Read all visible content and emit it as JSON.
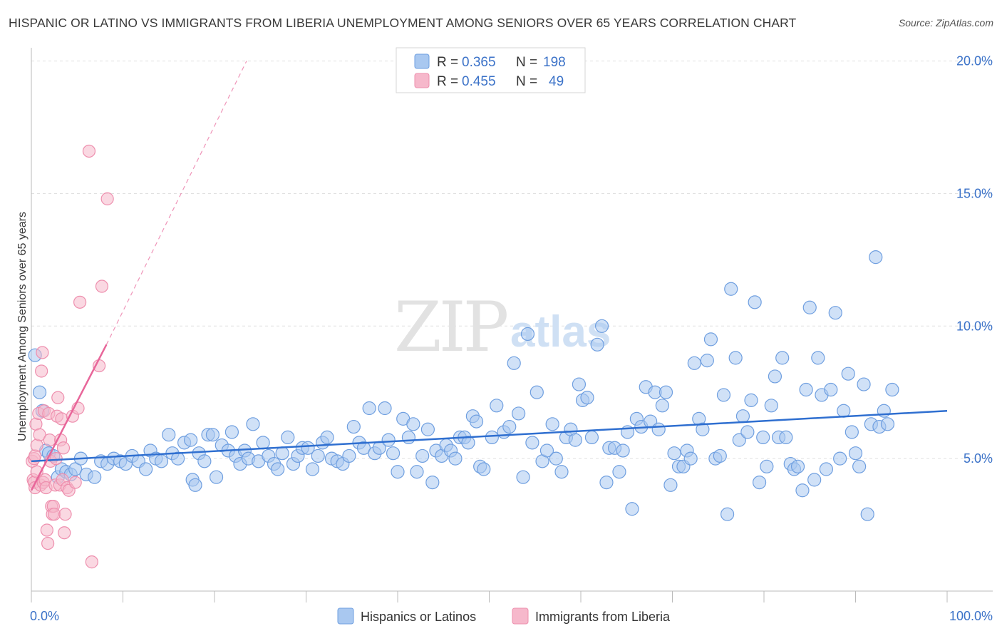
{
  "title": "HISPANIC OR LATINO VS IMMIGRANTS FROM LIBERIA UNEMPLOYMENT AMONG SENIORS OVER 65 YEARS CORRELATION CHART",
  "source": "Source: ZipAtlas.com",
  "watermark": {
    "zip": "ZIP",
    "atlas": "atlas"
  },
  "legend": {
    "rows": [
      {
        "r_label": "R =",
        "r_value": "0.365",
        "n_label": "N =",
        "n_value": "198",
        "color": "#a9c8f0"
      },
      {
        "r_label": "R =",
        "r_value": "0.455",
        "n_label": "N =",
        "n_value": "49",
        "color": "#f6b8cb"
      }
    ]
  },
  "bottom_legend": [
    {
      "label": "Hispanics or Latinos",
      "color": "#a9c8f0"
    },
    {
      "label": "Immigrants from Liberia",
      "color": "#f6b8cb"
    }
  ],
  "colors": {
    "blue_fill": "#a9c8f0",
    "blue_stroke": "#6f9fe0",
    "blue_line": "#2f6fd0",
    "pink_fill": "#f6b8cb",
    "pink_stroke": "#ee8fae",
    "pink_line": "#e8669a",
    "grid": "#e0e0e0",
    "axis_label": "#3b72c8"
  },
  "chart_data": {
    "type": "scatter",
    "title": "HISPANIC OR LATINO VS IMMIGRANTS FROM LIBERIA UNEMPLOYMENT AMONG SENIORS OVER 65 YEARS CORRELATION CHART",
    "xlabel": "",
    "ylabel": "Unemployment Among Seniors over 65 years",
    "xlim": [
      0,
      100
    ],
    "ylim": [
      0,
      20.5
    ],
    "y_ticks": [
      5,
      10,
      15,
      20
    ],
    "y_tick_labels": [
      "5.0%",
      "10.0%",
      "15.0%",
      "20.0%"
    ],
    "x_tick_labels": [
      "0.0%",
      "100.0%"
    ],
    "grid": true,
    "series": [
      {
        "name": "Hispanics or Latinos",
        "r": 0.365,
        "n": 198,
        "trend": {
          "x": [
            0,
            100
          ],
          "y": [
            4.9,
            6.8
          ],
          "style": "solid"
        },
        "points": [
          [
            0.4,
            8.9
          ],
          [
            0.9,
            7.5
          ],
          [
            1.2,
            6.8
          ],
          [
            1.6,
            5.3
          ],
          [
            1.9,
            5.2
          ],
          [
            2.4,
            5.1
          ],
          [
            2.9,
            4.3
          ],
          [
            3.3,
            4.6
          ],
          [
            3.8,
            4.5
          ],
          [
            4.3,
            4.4
          ],
          [
            4.8,
            4.6
          ],
          [
            5.4,
            5.0
          ],
          [
            6.0,
            4.4
          ],
          [
            6.9,
            4.3
          ],
          [
            7.6,
            4.9
          ],
          [
            8.3,
            4.8
          ],
          [
            9.0,
            5.0
          ],
          [
            9.7,
            4.9
          ],
          [
            10.3,
            4.8
          ],
          [
            11.0,
            5.1
          ],
          [
            11.7,
            4.9
          ],
          [
            12.5,
            4.6
          ],
          [
            13.0,
            5.3
          ],
          [
            13.6,
            5.0
          ],
          [
            14.2,
            4.9
          ],
          [
            15.0,
            5.9
          ],
          [
            15.4,
            5.2
          ],
          [
            16.0,
            5.0
          ],
          [
            16.7,
            5.6
          ],
          [
            17.4,
            5.7
          ],
          [
            17.6,
            4.2
          ],
          [
            17.9,
            4.0
          ],
          [
            18.3,
            5.2
          ],
          [
            18.9,
            4.9
          ],
          [
            19.3,
            5.9
          ],
          [
            19.8,
            5.9
          ],
          [
            20.2,
            4.3
          ],
          [
            20.8,
            5.5
          ],
          [
            21.5,
            5.3
          ],
          [
            21.9,
            6.0
          ],
          [
            22.3,
            5.1
          ],
          [
            22.8,
            4.8
          ],
          [
            23.3,
            5.3
          ],
          [
            23.7,
            5.0
          ],
          [
            24.2,
            6.3
          ],
          [
            24.8,
            4.9
          ],
          [
            25.3,
            5.6
          ],
          [
            25.9,
            5.1
          ],
          [
            26.5,
            4.8
          ],
          [
            26.9,
            4.6
          ],
          [
            27.4,
            5.2
          ],
          [
            28.0,
            5.8
          ],
          [
            28.6,
            4.8
          ],
          [
            29.1,
            5.1
          ],
          [
            29.6,
            5.4
          ],
          [
            30.2,
            5.4
          ],
          [
            30.7,
            4.6
          ],
          [
            31.3,
            5.1
          ],
          [
            31.8,
            5.6
          ],
          [
            32.3,
            5.8
          ],
          [
            32.8,
            5.0
          ],
          [
            33.4,
            4.9
          ],
          [
            34.0,
            4.8
          ],
          [
            34.7,
            5.1
          ],
          [
            35.2,
            6.2
          ],
          [
            35.8,
            5.6
          ],
          [
            36.3,
            5.4
          ],
          [
            36.9,
            6.9
          ],
          [
            37.5,
            5.2
          ],
          [
            38.0,
            5.4
          ],
          [
            38.6,
            6.9
          ],
          [
            39.0,
            5.7
          ],
          [
            39.5,
            5.2
          ],
          [
            40.0,
            4.5
          ],
          [
            40.6,
            6.5
          ],
          [
            41.2,
            5.8
          ],
          [
            41.7,
            6.3
          ],
          [
            42.1,
            4.5
          ],
          [
            42.7,
            5.1
          ],
          [
            43.3,
            6.1
          ],
          [
            43.8,
            4.1
          ],
          [
            44.2,
            5.3
          ],
          [
            44.8,
            5.1
          ],
          [
            45.3,
            5.5
          ],
          [
            45.8,
            5.3
          ],
          [
            46.3,
            5.0
          ],
          [
            46.8,
            5.8
          ],
          [
            47.3,
            5.8
          ],
          [
            47.7,
            5.6
          ],
          [
            48.2,
            6.6
          ],
          [
            48.6,
            6.4
          ],
          [
            49.0,
            4.7
          ],
          [
            49.4,
            4.6
          ],
          [
            50.3,
            5.8
          ],
          [
            50.8,
            7.0
          ],
          [
            51.6,
            6.0
          ],
          [
            52.2,
            6.2
          ],
          [
            52.7,
            8.6
          ],
          [
            53.2,
            6.7
          ],
          [
            53.7,
            4.3
          ],
          [
            54.2,
            9.7
          ],
          [
            54.7,
            5.6
          ],
          [
            55.2,
            7.5
          ],
          [
            55.8,
            4.9
          ],
          [
            56.3,
            5.3
          ],
          [
            56.9,
            6.3
          ],
          [
            57.3,
            5.0
          ],
          [
            57.9,
            4.5
          ],
          [
            58.4,
            5.8
          ],
          [
            58.9,
            6.1
          ],
          [
            59.4,
            5.7
          ],
          [
            59.8,
            7.8
          ],
          [
            60.2,
            7.2
          ],
          [
            60.7,
            7.3
          ],
          [
            61.2,
            5.8
          ],
          [
            61.8,
            9.3
          ],
          [
            62.3,
            10.0
          ],
          [
            62.8,
            4.1
          ],
          [
            63.1,
            5.4
          ],
          [
            63.7,
            5.4
          ],
          [
            64.2,
            4.5
          ],
          [
            64.6,
            5.3
          ],
          [
            65.1,
            6.0
          ],
          [
            65.6,
            3.1
          ],
          [
            66.1,
            6.5
          ],
          [
            66.6,
            6.2
          ],
          [
            67.1,
            7.7
          ],
          [
            67.6,
            6.4
          ],
          [
            68.1,
            7.5
          ],
          [
            68.5,
            6.1
          ],
          [
            68.9,
            7.0
          ],
          [
            69.3,
            7.5
          ],
          [
            69.8,
            4.0
          ],
          [
            70.2,
            5.2
          ],
          [
            70.7,
            4.7
          ],
          [
            71.2,
            4.7
          ],
          [
            71.6,
            5.3
          ],
          [
            72.0,
            5.0
          ],
          [
            72.4,
            8.6
          ],
          [
            72.9,
            6.5
          ],
          [
            73.3,
            6.1
          ],
          [
            73.8,
            8.7
          ],
          [
            74.2,
            9.5
          ],
          [
            74.7,
            5.0
          ],
          [
            75.2,
            5.1
          ],
          [
            75.6,
            7.4
          ],
          [
            76.0,
            2.9
          ],
          [
            76.4,
            11.4
          ],
          [
            76.9,
            8.8
          ],
          [
            77.3,
            5.7
          ],
          [
            77.7,
            6.6
          ],
          [
            78.2,
            6.0
          ],
          [
            78.6,
            7.2
          ],
          [
            79.0,
            10.9
          ],
          [
            79.5,
            4.1
          ],
          [
            79.9,
            5.8
          ],
          [
            80.3,
            4.7
          ],
          [
            80.8,
            7.0
          ],
          [
            81.2,
            8.1
          ],
          [
            81.6,
            5.8
          ],
          [
            82.0,
            8.8
          ],
          [
            82.4,
            5.8
          ],
          [
            82.9,
            4.8
          ],
          [
            83.3,
            4.6
          ],
          [
            83.7,
            4.7
          ],
          [
            84.2,
            3.8
          ],
          [
            84.6,
            7.6
          ],
          [
            85.0,
            10.7
          ],
          [
            85.5,
            4.2
          ],
          [
            85.9,
            8.8
          ],
          [
            86.3,
            7.4
          ],
          [
            86.8,
            4.6
          ],
          [
            87.3,
            7.6
          ],
          [
            87.8,
            10.5
          ],
          [
            88.3,
            5.0
          ],
          [
            88.7,
            6.8
          ],
          [
            89.2,
            8.2
          ],
          [
            89.6,
            6.0
          ],
          [
            90.0,
            5.2
          ],
          [
            90.4,
            4.7
          ],
          [
            90.9,
            7.8
          ],
          [
            91.3,
            2.9
          ],
          [
            91.7,
            6.3
          ],
          [
            92.2,
            12.6
          ],
          [
            92.6,
            6.2
          ],
          [
            93.1,
            6.8
          ],
          [
            93.5,
            6.3
          ],
          [
            94.0,
            7.6
          ]
        ]
      },
      {
        "name": "Immigrants from Liberia",
        "r": 0.455,
        "n": 49,
        "trend": {
          "x": [
            0,
            8.2
          ],
          "y": [
            3.8,
            9.3
          ],
          "style": "solid",
          "extension": {
            "x": [
              8.2,
              23.5
            ],
            "y": [
              9.3,
              20.0
            ],
            "style": "dashed"
          }
        },
        "points": [
          [
            0.1,
            4.9
          ],
          [
            0.2,
            4.2
          ],
          [
            0.3,
            5.0
          ],
          [
            0.3,
            4.1
          ],
          [
            0.4,
            3.9
          ],
          [
            0.4,
            5.1
          ],
          [
            0.5,
            6.3
          ],
          [
            0.6,
            5.5
          ],
          [
            0.6,
            4.5
          ],
          [
            0.8,
            6.7
          ],
          [
            0.9,
            5.9
          ],
          [
            1.0,
            4.0
          ],
          [
            1.1,
            8.3
          ],
          [
            1.2,
            9.0
          ],
          [
            1.3,
            4.1
          ],
          [
            1.4,
            6.8
          ],
          [
            1.5,
            4.2
          ],
          [
            1.6,
            3.9
          ],
          [
            1.7,
            2.3
          ],
          [
            1.8,
            1.8
          ],
          [
            1.9,
            6.7
          ],
          [
            2.0,
            5.7
          ],
          [
            2.1,
            4.9
          ],
          [
            2.2,
            3.2
          ],
          [
            2.3,
            2.9
          ],
          [
            2.4,
            3.2
          ],
          [
            2.5,
            2.9
          ],
          [
            2.6,
            4.0
          ],
          [
            2.7,
            5.0
          ],
          [
            2.8,
            6.6
          ],
          [
            2.9,
            7.3
          ],
          [
            3.1,
            4.0
          ],
          [
            3.2,
            5.7
          ],
          [
            3.3,
            6.5
          ],
          [
            3.4,
            4.2
          ],
          [
            3.5,
            5.4
          ],
          [
            3.6,
            2.2
          ],
          [
            3.7,
            2.9
          ],
          [
            3.9,
            3.9
          ],
          [
            4.1,
            3.8
          ],
          [
            4.5,
            6.6
          ],
          [
            4.8,
            4.1
          ],
          [
            5.1,
            6.9
          ],
          [
            5.3,
            10.9
          ],
          [
            6.3,
            16.6
          ],
          [
            6.6,
            1.1
          ],
          [
            7.4,
            8.5
          ],
          [
            7.7,
            11.5
          ],
          [
            8.3,
            14.8
          ]
        ]
      }
    ]
  }
}
